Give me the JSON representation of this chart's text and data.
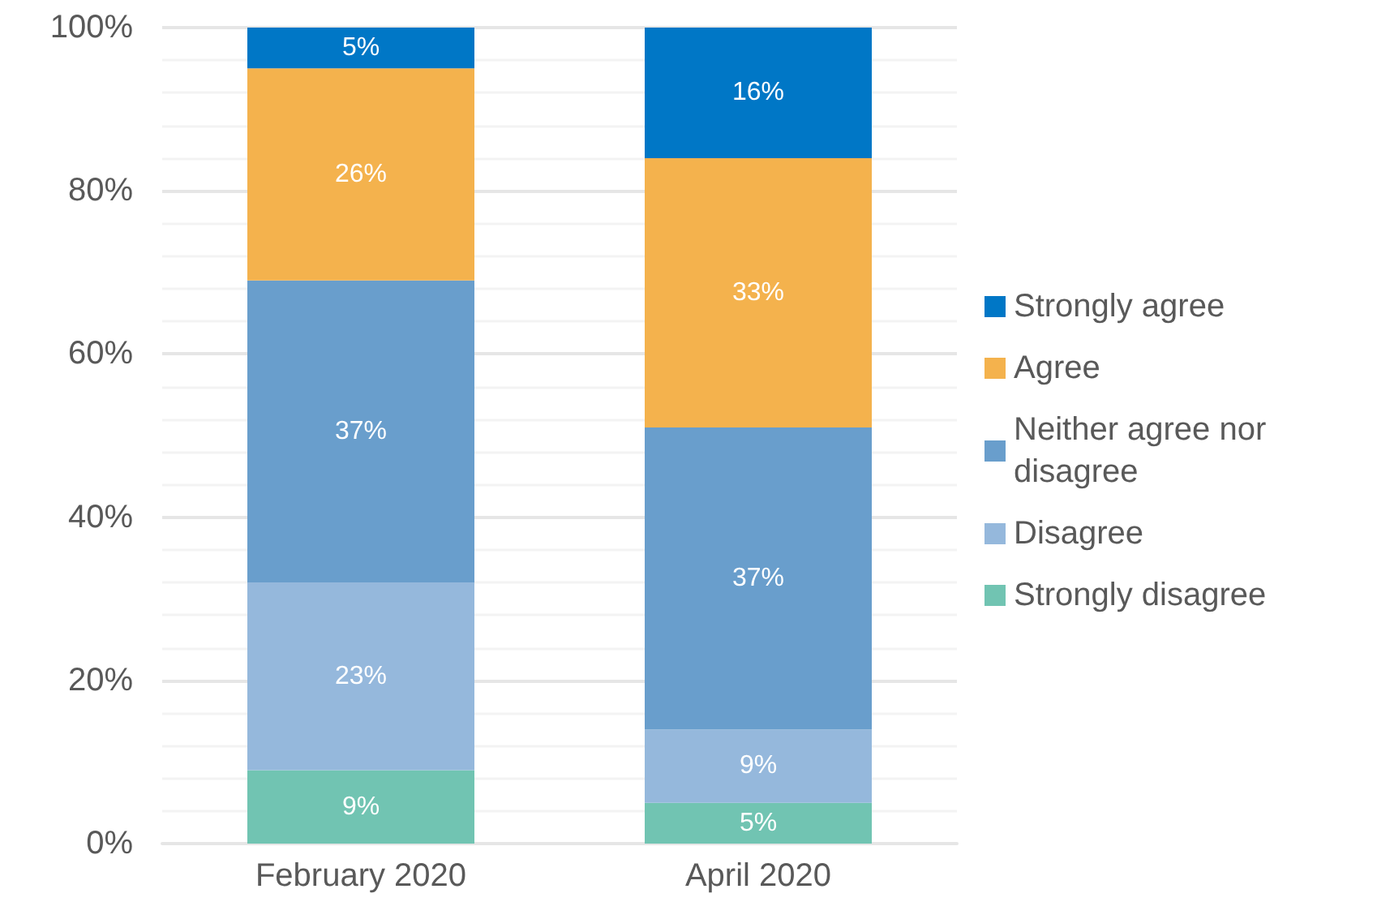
{
  "chart_data": {
    "type": "bar",
    "stacked": true,
    "categories": [
      "February 2020",
      "April 2020"
    ],
    "series": [
      {
        "name": "Strongly disagree",
        "color": "#71c4b2",
        "values": [
          9,
          5
        ],
        "value_labels": [
          "9%",
          "5%"
        ]
      },
      {
        "name": "Disagree",
        "color": "#95b8dc",
        "values": [
          23,
          9
        ],
        "value_labels": [
          "23%",
          "9%"
        ]
      },
      {
        "name": "Neither agree nor disagree",
        "color": "#699ecc",
        "values": [
          37,
          37
        ],
        "value_labels": [
          "37%",
          "37%"
        ]
      },
      {
        "name": "Agree",
        "color": "#f4b24d",
        "values": [
          26,
          33
        ],
        "value_labels": [
          "26%",
          "33%"
        ]
      },
      {
        "name": "Strongly agree",
        "color": "#0077c6",
        "values": [
          5,
          16
        ],
        "value_labels": [
          "5%",
          "16%"
        ]
      }
    ],
    "ylim": [
      0,
      100
    ],
    "yticks": [
      {
        "value": 0,
        "label": "0%"
      },
      {
        "value": 20,
        "label": "20%"
      },
      {
        "value": 40,
        "label": "40%"
      },
      {
        "value": 60,
        "label": "60%"
      },
      {
        "value": 80,
        "label": "80%"
      },
      {
        "value": 100,
        "label": "100%"
      }
    ],
    "grid": "y",
    "legend": "right"
  }
}
